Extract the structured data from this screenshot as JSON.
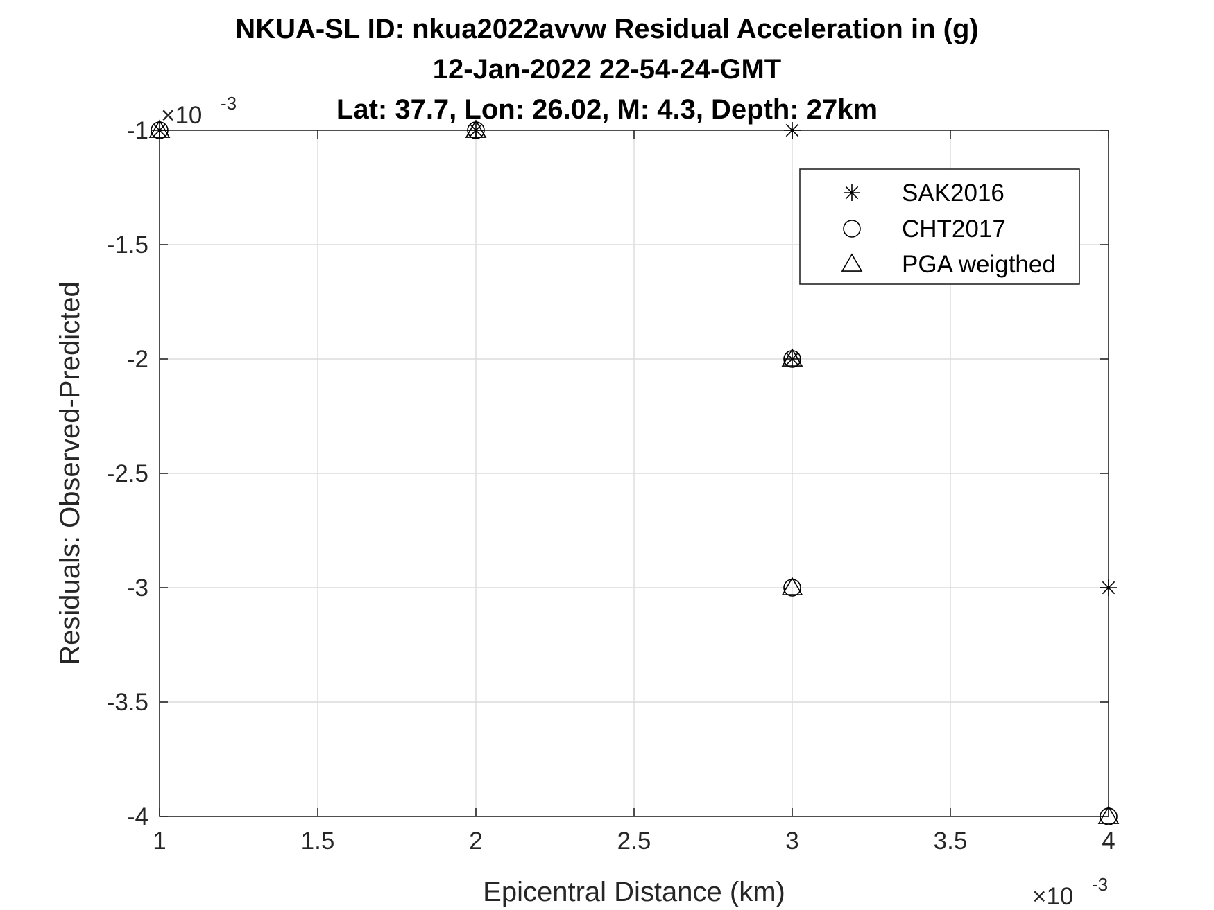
{
  "chart_data": {
    "type": "scatter",
    "title": [
      "NKUA-SL ID: nkua2022avvw Residual Acceleration in (g)",
      "12-Jan-2022 22-54-24-GMT",
      "Lat: 37.7, Lon: 26.02, M: 4.3, Depth: 27km"
    ],
    "xlabel": "Epicentral Distance (km)",
    "ylabel": "Residuals: Observed-Predicted",
    "xlim": [
      0.001,
      0.004
    ],
    "ylim": [
      -0.004,
      -0.001
    ],
    "x_exponent_label": "×10",
    "x_exponent_power": "-3",
    "y_exponent_label": "×10",
    "y_exponent_power": "-3",
    "x_ticks": [
      1,
      1.5,
      2,
      2.5,
      3,
      3.5,
      4
    ],
    "x_tick_labels": [
      "1",
      "1.5",
      "2",
      "2.5",
      "3",
      "3.5",
      "4"
    ],
    "y_ticks": [
      -1,
      -1.5,
      -2,
      -2.5,
      -3,
      -3.5,
      -4
    ],
    "y_tick_labels": [
      "-1",
      "-1.5",
      "-2",
      "-2.5",
      "-3",
      "-3.5",
      "-4"
    ],
    "grid": true,
    "legend_position": "top-right",
    "series": [
      {
        "name": "SAK2016",
        "marker": "asterisk",
        "x": [
          0.001,
          0.002,
          0.003,
          0.003,
          0.004
        ],
        "y": [
          -0.001,
          -0.001,
          -0.001,
          -0.002,
          -0.003
        ]
      },
      {
        "name": "CHT2017",
        "marker": "circle",
        "x": [
          0.001,
          0.002,
          0.003,
          0.003,
          0.004
        ],
        "y": [
          -0.001,
          -0.001,
          -0.002,
          -0.003,
          -0.004
        ]
      },
      {
        "name": "PGA weigthed",
        "marker": "triangle",
        "x": [
          0.001,
          0.002,
          0.003,
          0.003,
          0.004
        ],
        "y": [
          -0.001,
          -0.001,
          -0.002,
          -0.003,
          -0.004
        ]
      }
    ],
    "colors": {
      "marker": "#000000",
      "axis": "#262626",
      "grid": "#dcdcdc"
    }
  }
}
